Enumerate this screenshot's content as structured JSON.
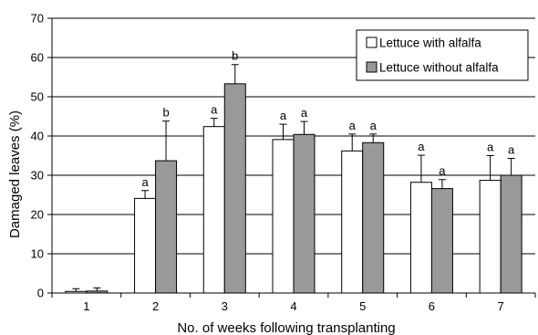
{
  "chart_data": {
    "type": "bar",
    "xlabel": "No. of weeks following transplanting",
    "ylabel": "Damaged leaves (%)",
    "ylim": [
      0,
      70
    ],
    "yticks": [
      0,
      10,
      20,
      30,
      40,
      50,
      60,
      70
    ],
    "grid": "horizontal",
    "legend_position": "top-right",
    "categories": [
      "1",
      "2",
      "3",
      "4",
      "5",
      "6",
      "7"
    ],
    "series": [
      {
        "name": "Lettuce with alfalfa",
        "color": "#ffffff",
        "values": [
          0.4,
          24.1,
          42.4,
          39.1,
          36.2,
          28.2,
          28.7
        ],
        "errors": [
          0.7,
          2.0,
          2.1,
          3.9,
          4.3,
          6.9,
          6.3
        ],
        "labels": [
          "",
          "a",
          "a",
          "a",
          "a",
          "a",
          "a"
        ]
      },
      {
        "name": "Lettuce without alfalfa",
        "color": "#999999",
        "values": [
          0.5,
          33.7,
          53.3,
          40.4,
          38.3,
          26.6,
          30.0
        ],
        "errors": [
          0.8,
          10.1,
          4.9,
          3.3,
          2.2,
          2.3,
          4.3
        ],
        "labels": [
          "",
          "b",
          "b",
          "a",
          "a",
          "a",
          "a"
        ]
      }
    ]
  }
}
